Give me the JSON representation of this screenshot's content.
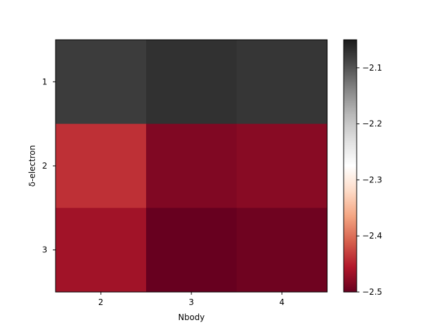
{
  "chart_data": {
    "type": "heatmap",
    "title": "",
    "xlabel": "Nbody",
    "ylabel": "δ-electron",
    "x_categories": [
      "2",
      "3",
      "4"
    ],
    "y_categories": [
      "1",
      "2",
      "3"
    ],
    "values": [
      [
        -2.08,
        -2.07,
        -2.075
      ],
      [
        -2.44,
        -2.485,
        -2.48
      ],
      [
        -2.465,
        -2.5,
        -2.495
      ]
    ],
    "colormap": "RdGy",
    "colorbar": {
      "min": -2.5,
      "max": -2.05,
      "ticks": [
        -2.1,
        -2.2,
        -2.3,
        -2.4,
        -2.5
      ],
      "tick_labels": [
        "−2.1",
        "−2.2",
        "−2.3",
        "−2.4",
        "−2.5"
      ]
    },
    "grid": false
  }
}
